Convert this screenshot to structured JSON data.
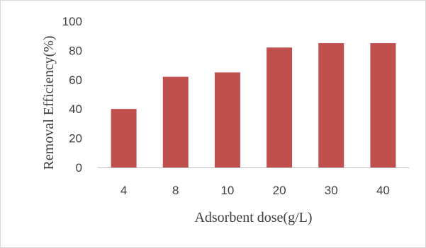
{
  "chart_data": {
    "type": "bar",
    "title": "",
    "xlabel": "Adsorbent dose(g/L)",
    "ylabel": "Removal Efficiency(%)",
    "categories": [
      "4",
      "8",
      "10",
      "20",
      "30",
      "40"
    ],
    "values": [
      40,
      62,
      65,
      82,
      85,
      85
    ],
    "ylim": [
      0,
      100
    ],
    "yticks": [
      "0",
      "20",
      "40",
      "60",
      "80",
      "100"
    ],
    "grid": false,
    "legend": "none",
    "bar_color": "#c0504d",
    "axis_color": "#bfbfbf",
    "text_color": "#404040"
  }
}
